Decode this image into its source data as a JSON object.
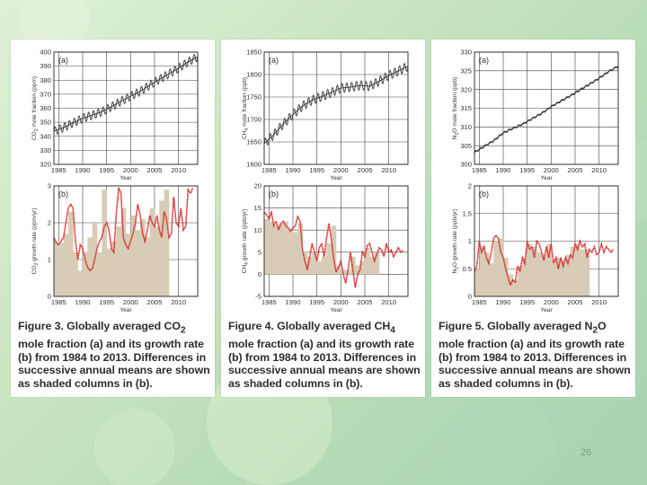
{
  "slide": {
    "page_number": "26",
    "colors": {
      "background": "#c9e6c0",
      "growth_line": "#d62a2a",
      "annual_fill": "#d8ccb6",
      "monthly_line": "#555555"
    }
  },
  "chart_data": [
    {
      "type": "line",
      "gas": "CO2",
      "index_label": "(a)",
      "ylabel_parts": [
        "CO",
        "2",
        " mole fraction (ppm)"
      ],
      "xlabel": "Year",
      "xlim": [
        1984,
        2014
      ],
      "ylim": [
        320,
        400
      ],
      "xticks": [
        1985,
        1990,
        1995,
        2000,
        2005,
        2010
      ],
      "yticks": [
        320,
        330,
        340,
        350,
        360,
        370,
        380,
        390,
        400
      ],
      "series": [
        {
          "x": [
            1984,
            1986,
            1988,
            1990,
            1992,
            1994,
            1996,
            1998,
            2000,
            2002,
            2004,
            2006,
            2008,
            2010,
            2012,
            2013.9
          ],
          "values": [
            343.5,
            346.2,
            349.5,
            352.8,
            355,
            357.5,
            361,
            365,
            368.5,
            372,
            376.5,
            380.5,
            384.5,
            388.5,
            393,
            396.5
          ]
        }
      ],
      "seasonal_amplitude": 3
    },
    {
      "type": "area",
      "gas": "CO2",
      "index_label": "(b)",
      "ylabel_parts": [
        "CO",
        "2",
        " growth rate (ppm/yr)"
      ],
      "xlabel": "Year",
      "xlim": [
        1984,
        2014
      ],
      "ylim": [
        0,
        3
      ],
      "xticks": [
        1985,
        1990,
        1995,
        2000,
        2005,
        2010
      ],
      "yticks": [
        0,
        1,
        2,
        3
      ],
      "annual_means": [
        1.5,
        1.45,
        1.7,
        2.3,
        1.2,
        0.7,
        1.2,
        1.6,
        2.0,
        1.2,
        2.9,
        1.3,
        1.5,
        1.9,
        2.4,
        1.7,
        2.2,
        1.8,
        2.1,
        1.6,
        2.4,
        1.9,
        2.6,
        2.9
      ],
      "series": [
        {
          "x": [
            1984,
            1984.5,
            1985,
            1985.5,
            1986,
            1986.5,
            1987,
            1987.5,
            1988,
            1988.5,
            1989,
            1989.5,
            1990,
            1990.5,
            1991,
            1991.5,
            1992,
            1992.5,
            1993,
            1993.5,
            1994,
            1994.5,
            1995,
            1995.5,
            1996,
            1996.5,
            1997,
            1997.5,
            1998,
            1998.5,
            1999,
            1999.5,
            2000,
            2000.5,
            2001,
            2001.5,
            2002,
            2002.5,
            2003,
            2003.5,
            2004,
            2004.5,
            2005,
            2005.5,
            2006,
            2006.5,
            2007,
            2007.5,
            2008,
            2008.5,
            2009,
            2009.5,
            2010,
            2010.5,
            2011,
            2011.5,
            2012,
            2012.5,
            2013
          ],
          "values": [
            1.6,
            1.45,
            1.4,
            1.5,
            1.6,
            2.0,
            2.4,
            2.5,
            2.4,
            1.5,
            1.0,
            1.4,
            1.3,
            1.0,
            0.8,
            0.7,
            0.75,
            1.0,
            1.3,
            1.5,
            1.6,
            1.9,
            2.0,
            1.8,
            1.3,
            1.2,
            2.2,
            2.95,
            2.8,
            1.6,
            1.4,
            1.3,
            1.5,
            1.7,
            2.0,
            2.5,
            2.2,
            1.7,
            1.5,
            1.8,
            2.2,
            2.0,
            1.9,
            2.2,
            1.8,
            1.6,
            2.3,
            2.1,
            1.6,
            1.7,
            2.7,
            2.0,
            1.9,
            2.4,
            1.8,
            1.9,
            2.9,
            2.8,
            2.95
          ]
        }
      ]
    },
    {
      "type": "line",
      "gas": "CH4",
      "index_label": "(a)",
      "ylabel_parts": [
        "CH",
        "4",
        " mole fraction (ppb)"
      ],
      "xlabel": "Year",
      "xlim": [
        1984,
        2014
      ],
      "ylim": [
        1600,
        1850
      ],
      "xticks": [
        1985,
        1990,
        1995,
        2000,
        2005,
        2010
      ],
      "yticks": [
        1600,
        1650,
        1700,
        1750,
        1800,
        1850
      ],
      "series": [
        {
          "x": [
            1984,
            1986,
            1988,
            1990,
            1992,
            1994,
            1996,
            1998,
            2000,
            2002,
            2004,
            2006,
            2008,
            2010,
            2012,
            2013.9
          ],
          "values": [
            1646,
            1666,
            1690,
            1711,
            1730,
            1743,
            1751,
            1760,
            1770,
            1772,
            1776,
            1774,
            1785,
            1798,
            1808,
            1818
          ]
        }
      ],
      "seasonal_amplitude": 10
    },
    {
      "type": "area",
      "gas": "CH4",
      "index_label": "(b)",
      "ylabel_parts": [
        "CH",
        "4",
        " growth rate (ppb/yr)"
      ],
      "xlabel": "Year",
      "xlim": [
        1984,
        2014
      ],
      "ylim": [
        -5,
        20
      ],
      "xticks": [
        1985,
        1990,
        1995,
        2000,
        2005,
        2010
      ],
      "yticks": [
        -5,
        0,
        5,
        10,
        15,
        20
      ],
      "annual_means": [
        12.5,
        12,
        11,
        11.5,
        12,
        10,
        9.5,
        11.5,
        5,
        4,
        5,
        3,
        4,
        7,
        11,
        2,
        1,
        1,
        4,
        2,
        3,
        6,
        4,
        5
      ],
      "series": [
        {
          "x": [
            1984,
            1984.5,
            1985,
            1985.5,
            1986,
            1986.5,
            1987,
            1987.5,
            1988,
            1988.5,
            1989,
            1989.5,
            1990,
            1990.5,
            1991,
            1991.5,
            1992,
            1992.5,
            1993,
            1993.5,
            1994,
            1994.5,
            1995,
            1995.5,
            1996,
            1996.5,
            1997,
            1997.5,
            1998,
            1998.5,
            1999,
            1999.5,
            2000,
            2000.5,
            2001,
            2001.5,
            2002,
            2002.5,
            2003,
            2003.5,
            2004,
            2004.5,
            2005,
            2005.5,
            2006,
            2006.5,
            2007,
            2007.5,
            2008,
            2008.5,
            2009,
            2009.5,
            2010,
            2010.5,
            2011,
            2011.5,
            2012,
            2012.5,
            2013
          ],
          "values": [
            14,
            13.5,
            12.5,
            14,
            11,
            12,
            10,
            11.5,
            12,
            11,
            10.5,
            9.8,
            10.5,
            11,
            13,
            12,
            5.5,
            3,
            1,
            4,
            7,
            5,
            3,
            6,
            7,
            4,
            8,
            11.5,
            8,
            3.5,
            0.5,
            1.5,
            3,
            0,
            -2,
            1,
            5,
            1,
            -3,
            0,
            1,
            5,
            4,
            6.5,
            7,
            5,
            3,
            4.5,
            6,
            5.5,
            4,
            7,
            5,
            5.5,
            4,
            5,
            6,
            5,
            5.5
          ]
        }
      ]
    },
    {
      "type": "line",
      "gas": "N2O",
      "index_label": "(a)",
      "ylabel_parts": [
        "N",
        "2",
        "O mole fraction (ppb)"
      ],
      "xlabel": "Year",
      "xlim": [
        1984,
        2014
      ],
      "ylim": [
        300,
        330
      ],
      "xticks": [
        1985,
        1990,
        1995,
        2000,
        2005,
        2010
      ],
      "yticks": [
        300,
        305,
        310,
        315,
        320,
        325,
        330
      ],
      "series": [
        {
          "x": [
            1984,
            1986,
            1988,
            1990,
            1992,
            1994,
            1996,
            1998,
            2000,
            2002,
            2004,
            2006,
            2008,
            2010,
            2012,
            2013.9
          ],
          "values": [
            303.2,
            304.8,
            306.3,
            308.4,
            309.6,
            310.7,
            312.2,
            313.6,
            315.4,
            316.9,
            318.3,
            319.9,
            321.4,
            323,
            324.8,
            326.2
          ]
        }
      ],
      "seasonal_amplitude": 0.3
    },
    {
      "type": "area",
      "gas": "N2O",
      "index_label": "(b)",
      "ylabel_parts": [
        "N",
        "2",
        "O growth rate (ppb/yr)"
      ],
      "xlabel": "Year",
      "xlim": [
        1984,
        2014
      ],
      "ylim": [
        0,
        2
      ],
      "xticks": [
        1985,
        1990,
        1995,
        2000,
        2005,
        2010
      ],
      "yticks": [
        0,
        0.5,
        1,
        1.5,
        2
      ],
      "annual_means": [
        0.5,
        0.9,
        0.8,
        0.6,
        1.0,
        1.05,
        0.7,
        0.4,
        0.3,
        0.55,
        0.7,
        0.95,
        0.9,
        0.8,
        0.75,
        0.95,
        0.65,
        0.7,
        0.65,
        0.75,
        0.9,
        0.95,
        0.85,
        0.85
      ],
      "series": [
        {
          "x": [
            1984,
            1984.5,
            1985,
            1985.5,
            1986,
            1986.5,
            1987,
            1987.5,
            1988,
            1988.5,
            1989,
            1989.5,
            1990,
            1990.5,
            1991,
            1991.5,
            1992,
            1992.5,
            1993,
            1993.5,
            1994,
            1994.5,
            1995,
            1995.5,
            1996,
            1996.5,
            1997,
            1997.5,
            1998,
            1998.5,
            1999,
            1999.5,
            2000,
            2000.5,
            2001,
            2001.5,
            2002,
            2002.5,
            2003,
            2003.5,
            2004,
            2004.5,
            2005,
            2005.5,
            2006,
            2006.5,
            2007,
            2007.5,
            2008,
            2008.5,
            2009,
            2009.5,
            2010,
            2010.5,
            2011,
            2011.5,
            2012,
            2012.5,
            2013
          ],
          "values": [
            0.45,
            0.55,
            1.0,
            0.8,
            0.9,
            0.7,
            0.6,
            0.8,
            1.05,
            1.1,
            1.05,
            0.8,
            0.7,
            0.5,
            0.35,
            0.2,
            0.3,
            0.25,
            0.55,
            0.45,
            0.7,
            0.6,
            1.0,
            0.85,
            0.9,
            0.7,
            1.0,
            0.95,
            0.8,
            0.65,
            0.9,
            0.7,
            0.95,
            0.6,
            0.7,
            0.5,
            0.7,
            0.55,
            0.7,
            0.6,
            0.75,
            0.7,
            0.95,
            0.85,
            1.0,
            0.9,
            0.95,
            0.7,
            0.85,
            0.8,
            0.9,
            0.75,
            0.8,
            0.95,
            0.8,
            0.9,
            0.85,
            0.8,
            0.85
          ]
        }
      ]
    }
  ],
  "captions": [
    {
      "prefix": "Figure 3. Globally averaged CO",
      "sub": "2",
      "suffix": " mole fraction (a) and its growth rate (b) from 1984 to 2013. Differences in successive annual means are shown as shaded columns in (b)."
    },
    {
      "prefix": "Figure 4. Globally averaged CH",
      "sub": "4",
      "suffix": " mole fraction (a) and its growth rate (b) from 1984 to 2013. Differences in successive annual means are shown as shaded columns in (b)."
    },
    {
      "prefix": "Figure 5. Globally averaged N",
      "sub": "2",
      "suffix": "O mole fraction (a) and its growth rate (b) from 1984 to 2013. Differences in successive annual means are shown as shaded columns in (b)."
    }
  ]
}
